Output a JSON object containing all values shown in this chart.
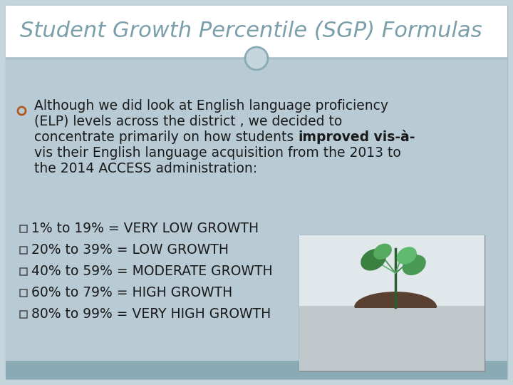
{
  "title": "Student Growth Percentile (SGP) Formulas",
  "title_color": "#7a9faa",
  "title_fontsize": 22,
  "bg_top": "#ffffff",
  "bg_bottom": "#a8bfc9",
  "bottom_bar_color": "#8aaab5",
  "divider_color": "#a0b8c2",
  "circle_color": "#8aaab5",
  "bullet_marker_color": "#b05a20",
  "bullet_line1": "Although we did look at English language proficiency",
  "bullet_line2": "(ELP) levels across the district , we decided to",
  "bullet_line3_pre": "concentrate primarily on how students ",
  "bullet_line3_bold": "improved",
  "bullet_line3_post": " vis-à-",
  "bullet_line4": "vis their English language acquisition from the 2013 to",
  "bullet_line5": "the 2014 ACCESS administration:",
  "text_color": "#1a1a1a",
  "text_fontsize": 13.5,
  "growth_lines": [
    "1% to 19% = VERY LOW GROWTH",
    "20% to 39% = LOW GROWTH",
    "40% to 59% = MODERATE GROWTH",
    "60% to 79% = HIGH GROWTH",
    "80% to 99% = VERY HIGH GROWTH"
  ],
  "growth_fontsize": 13.5
}
